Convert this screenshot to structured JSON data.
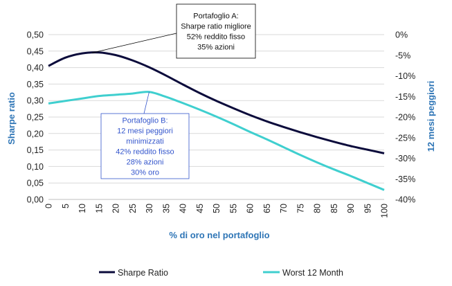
{
  "chart_data": {
    "type": "line",
    "xlabel": "% di oro nel portafoglio",
    "ylabel_left": "Sharpe ratio",
    "ylabel_right": "12 mesi peggiori",
    "x_ticks": [
      0,
      5,
      10,
      15,
      20,
      25,
      30,
      35,
      40,
      45,
      50,
      55,
      60,
      65,
      70,
      75,
      80,
      85,
      90,
      95,
      100
    ],
    "y_left_ticks": [
      "0,00",
      "0,05",
      "0,10",
      "0,15",
      "0,20",
      "0,25",
      "0,30",
      "0,35",
      "0,40",
      "0,45",
      "0,50"
    ],
    "y_right_ticks": [
      "0%",
      "-5%",
      "-10%",
      "-15%",
      "-20%",
      "-25%",
      "-30%",
      "-35%",
      "-40%"
    ],
    "ylim_left": [
      0,
      0.5
    ],
    "ylim_right": [
      -0.4,
      0
    ],
    "colors": {
      "sharpe": "#0b0b3b",
      "worst": "#3fcfcf",
      "axis_left": "#2e75b6",
      "axis_right": "#2e75b6",
      "annotation_b": "#3355cc"
    },
    "series": [
      {
        "name": "Sharpe Ratio",
        "axis": "left",
        "x": [
          0,
          5,
          10,
          15,
          20,
          25,
          30,
          35,
          40,
          45,
          50,
          55,
          60,
          65,
          70,
          75,
          80,
          85,
          90,
          95,
          100
        ],
        "values": [
          0.405,
          0.43,
          0.443,
          0.446,
          0.438,
          0.422,
          0.401,
          0.376,
          0.349,
          0.323,
          0.299,
          0.277,
          0.256,
          0.237,
          0.22,
          0.204,
          0.189,
          0.175,
          0.162,
          0.151,
          0.14
        ]
      },
      {
        "name": "Worst 12 Month",
        "axis": "right",
        "x": [
          0,
          5,
          10,
          15,
          20,
          25,
          30,
          35,
          40,
          45,
          50,
          55,
          60,
          65,
          70,
          75,
          80,
          85,
          90,
          95,
          100
        ],
        "values": [
          -0.167,
          -0.161,
          -0.155,
          -0.149,
          -0.146,
          -0.143,
          -0.139,
          -0.151,
          -0.166,
          -0.182,
          -0.199,
          -0.217,
          -0.236,
          -0.254,
          -0.273,
          -0.292,
          -0.31,
          -0.327,
          -0.343,
          -0.36,
          -0.377
        ]
      }
    ],
    "annotations": [
      {
        "name": "annotation-a",
        "point_x": 13,
        "series": 0,
        "lines": [
          "Portafoglio A:",
          "Sharpe ratio migliore",
          "52% reddito fisso",
          "35% azioni"
        ]
      },
      {
        "name": "annotation-b",
        "point_x": 30,
        "series": 1,
        "lines": [
          "Portafoglio B:",
          "12 mesi peggiori",
          "minimizzati",
          "42% reddito fisso",
          "28% azioni",
          "30% oro"
        ]
      }
    ],
    "legend_position": "bottom",
    "grid": true
  }
}
